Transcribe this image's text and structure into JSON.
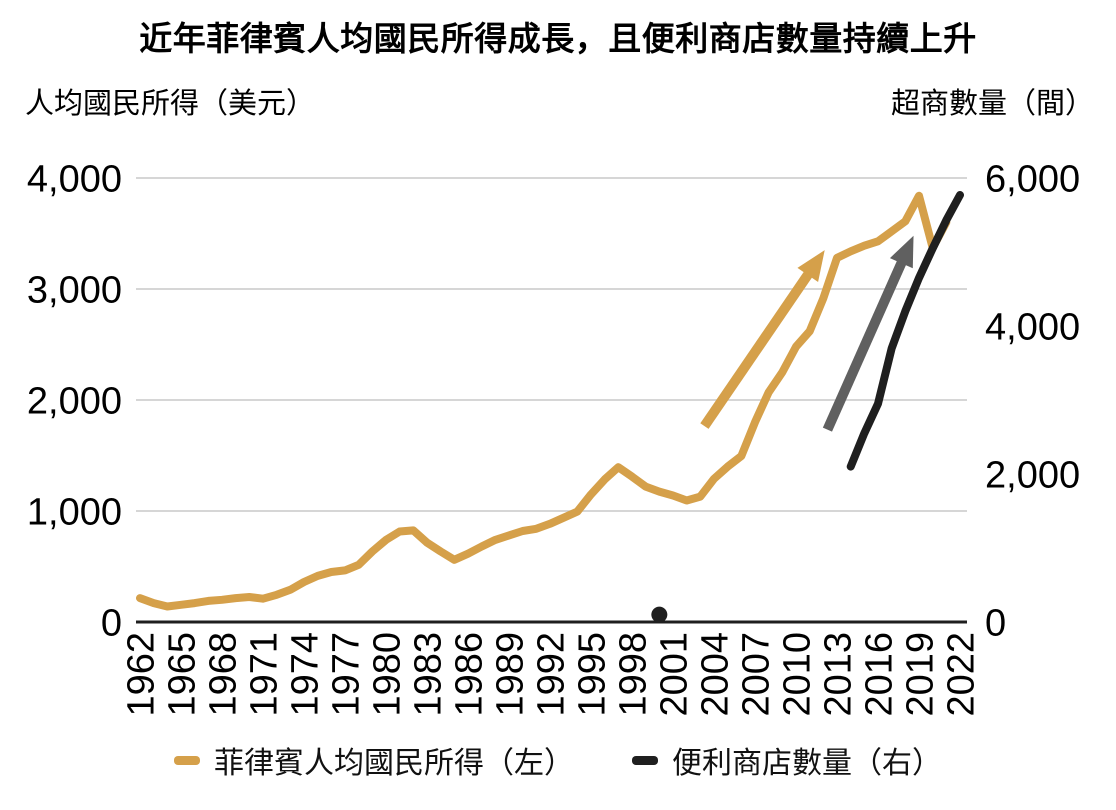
{
  "title": "近年菲律賓人均國民所得成長，且便利商店數量持續上升",
  "left_axis": {
    "title": "人均國民所得（美元）",
    "tick_values": [
      0,
      1000,
      2000,
      3000,
      4000
    ],
    "tick_labels": [
      "0",
      "1,000",
      "2,000",
      "3,000",
      "4,000"
    ],
    "max": 4000
  },
  "right_axis": {
    "title": "超商數量（間）",
    "tick_values": [
      0,
      2000,
      4000,
      6000
    ],
    "tick_labels": [
      "0",
      "2,000",
      "4,000",
      "6,000"
    ],
    "max": 6000
  },
  "x_axis": {
    "start": 1962,
    "end": 2022,
    "tick_years": [
      1962,
      1965,
      1968,
      1971,
      1974,
      1977,
      1980,
      1983,
      1986,
      1989,
      1992,
      1995,
      1998,
      2001,
      2004,
      2007,
      2010,
      2013,
      2016,
      2019,
      2022
    ]
  },
  "legend": {
    "items": [
      {
        "label": "菲律賓人均國民所得（左）",
        "color": "#D5A04A"
      },
      {
        "label": "便利商店數量（右）",
        "color": "#1F1F1F"
      }
    ]
  },
  "colors": {
    "income_line": "#D5A04A",
    "stores_line": "#1F1F1F",
    "income_arrow": "#D5A04A",
    "stores_arrow": "#606060",
    "gridline": "#C9C9C9",
    "axis_line": "#1F1F1F"
  },
  "chart_data": {
    "type": "line",
    "title": "近年菲律賓人均國民所得成長，且便利商店數量持續上升",
    "x_range": [
      1962,
      2022
    ],
    "left_ylim": [
      0,
      4000
    ],
    "right_ylim": [
      0,
      6000
    ],
    "grid": "horizontal",
    "legend_position": "bottom",
    "series": [
      {
        "name": "菲律賓人均國民所得（左）",
        "axis": "left",
        "color": "#D5A04A",
        "x_start": 1962,
        "x_step": 1,
        "values": [
          215,
          170,
          140,
          155,
          170,
          190,
          200,
          215,
          225,
          210,
          245,
          290,
          360,
          415,
          450,
          465,
          515,
          635,
          740,
          815,
          825,
          715,
          635,
          560,
          615,
          680,
          740,
          780,
          820,
          840,
          885,
          940,
          995,
          1150,
          1285,
          1395,
          1310,
          1220,
          1175,
          1140,
          1095,
          1130,
          1290,
          1400,
          1495,
          1800,
          2070,
          2250,
          2480,
          2620,
          2915,
          3280,
          3340,
          3390,
          3430,
          3520,
          3610,
          3840,
          3370,
          3600
        ]
      },
      {
        "name": "便利商店數量（右）",
        "axis": "right",
        "color": "#1F1F1F",
        "x": [
          2014,
          2015,
          2016,
          2017,
          2018,
          2019,
          2020,
          2021,
          2022
        ],
        "values": [
          2100,
          2550,
          2950,
          3700,
          4200,
          4650,
          5050,
          5430,
          5770
        ],
        "isolated_point": {
          "x": 2000,
          "value": 100
        }
      }
    ],
    "annotations": [
      {
        "type": "arrow",
        "axis": "left",
        "color": "#D5A04A",
        "from": {
          "x": 2003.3,
          "y": 1765
        },
        "to": {
          "x": 2012.1,
          "y": 3350
        }
      },
      {
        "type": "arrow",
        "axis": "right",
        "color": "#606060",
        "from": {
          "x": 2012.3,
          "y": 2600
        },
        "to": {
          "x": 2018.6,
          "y": 5220
        }
      }
    ]
  }
}
